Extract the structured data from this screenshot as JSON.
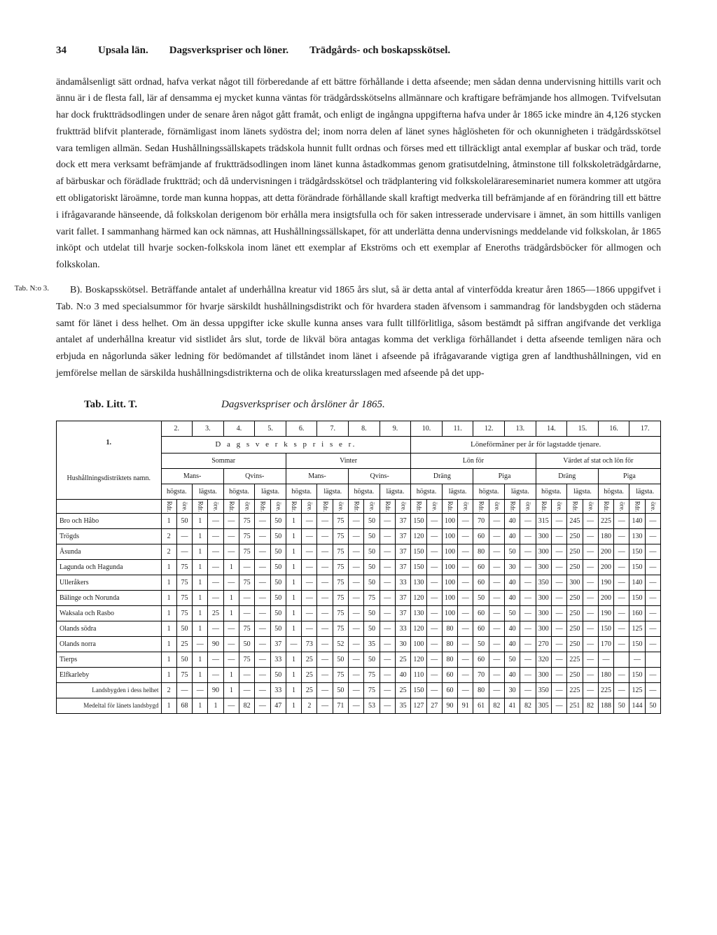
{
  "header": {
    "page": "34",
    "region": "Upsala län.",
    "topic1": "Dagsverkspriser och löner.",
    "topic2": "Trädgårds- och boskapsskötsel."
  },
  "para1": "ändamålsenligt sätt ordnad, hafva verkat något till förberedande af ett bättre förhållande i detta afseende; men sådan denna undervisning hittills varit och ännu är i de flesta fall, lär af densamma ej mycket kunna väntas för trädgårdsskötselns allmännare och kraftigare befrämjande hos allmogen. Tvifvelsutan har dock fruktträdsodlingen under de senare åren något gått framåt, och enligt de ingångna uppgifterna hafva under år 1865 icke mindre än 4,126 stycken fruktträd blifvit planterade, förnämligast inom länets sydöstra del; inom norra delen af länet synes håglösheten för och okunnigheten i trädgårdsskötsel vara temligen allmän. Sedan Hushållningssällskapets trädskola hunnit fullt ordnas och förses med ett tillräckligt antal exemplar af buskar och träd, torde dock ett mera verksamt befrämjande af fruktträdsodlingen inom länet kunna åstadkommas genom gratisutdelning, åtminstone till folkskoleträdgårdarne, af bärbuskar och förädlade fruktträd; och då undervisningen i trädgårdsskötsel och trädplantering vid folkskolelärareseminariet numera kommer att utgöra ett obligatoriskt läroämne, torde man kunna hoppas, att detta förändrade förhållande skall kraftigt medverka till befrämjande af en förändring till ett bättre i ifrågavarande hänseende, då folkskolan derigenom bör erhålla mera insigtsfulla och för saken intresserade undervisare i ämnet, än som hittills vanligen varit fallet. I sammanhang härmed kan ock nämnas, att Hushållningssällskapet, för att underlätta denna undervisnings meddelande vid folkskolan, år 1865 inköpt och utdelat till hvarje socken-folkskola inom länet ett exemplar af Ekströms och ett exemplar af Eneroths trädgårdsböcker för allmogen och folkskolan.",
  "margin_note": "Tab. N:o 3.",
  "para2": "B). Boskapsskötsel. Beträffande antalet af underhållna kreatur vid 1865 års slut, så är detta antal af vinterfödda kreatur åren 1865—1866 uppgifvet i Tab. N:o 3 med specialsummor för hvarje särskildt hushållningsdistrikt och för hvardera staden äfvensom i sammandrag för landsbygden och städerna samt för länet i dess helhet. Om än dessa uppgifter icke skulle kunna anses vara fullt tillförlitliga, såsom bestämdt på siffran angifvande det verkliga antalet af underhållna kreatur vid sistlidet års slut, torde de likväl böra antagas komma det verkliga förhållandet i detta afseende temligen nära och erbjuda en någorlunda säker ledning för bedömandet af tillståndet inom länet i afseende på ifrågavarande vigtiga gren af landthushållningen, vid en jemförelse mellan de särskilda hushållningsdistrikterna och de olika kreatursslagen med afseende på det upp-",
  "table": {
    "label": "Tab. Litt. T.",
    "title": "Dagsverkspriser och årslöner år 1865.",
    "col1_header": "1.",
    "colnums": [
      "2.",
      "3.",
      "4.",
      "5.",
      "6.",
      "7.",
      "8.",
      "9.",
      "10.",
      "11.",
      "12.",
      "13.",
      "14.",
      "15.",
      "16.",
      "17."
    ],
    "sect_left": "D a g s v e r k s p r i s e r.",
    "sect_right": "Löneförmåner per år för lagstadde tjenare.",
    "sommar": "Sommar",
    "vinter": "Vinter",
    "lonfor": "Lön för",
    "vardet": "Värdet af stat och lön för",
    "district_header": "Hushållningsdistriktets namn.",
    "mans": "Mans-",
    "qvins": "Qvins-",
    "drang": "Dräng",
    "piga": "Piga",
    "hogsta": "högsta.",
    "lagsta": "lägsta.",
    "rdr": "Rdr.",
    "ore": "öre.",
    "rows": [
      {
        "name": "Bro och Håbo",
        "v": [
          "1",
          "50",
          "1",
          "—",
          "—",
          "75",
          "—",
          "50",
          "1",
          "—",
          "—",
          "75",
          "—",
          "50",
          "—",
          "37",
          "150",
          "—",
          "100",
          "—",
          "70",
          "—",
          "40",
          "—",
          "315",
          "—",
          "245",
          "—",
          "225",
          "—",
          "140",
          "—"
        ]
      },
      {
        "name": "Trögds",
        "v": [
          "2",
          "—",
          "1",
          "—",
          "—",
          "75",
          "—",
          "50",
          "1",
          "—",
          "—",
          "75",
          "—",
          "50",
          "—",
          "37",
          "120",
          "—",
          "100",
          "—",
          "60",
          "—",
          "40",
          "—",
          "300",
          "—",
          "250",
          "—",
          "180",
          "—",
          "130",
          "—"
        ]
      },
      {
        "name": "Åsunda",
        "v": [
          "2",
          "—",
          "1",
          "—",
          "—",
          "75",
          "—",
          "50",
          "1",
          "—",
          "—",
          "75",
          "—",
          "50",
          "—",
          "37",
          "150",
          "—",
          "100",
          "—",
          "80",
          "—",
          "50",
          "—",
          "300",
          "—",
          "250",
          "—",
          "200",
          "—",
          "150",
          "—"
        ]
      },
      {
        "name": "Lagunda och Hagunda",
        "v": [
          "1",
          "75",
          "1",
          "—",
          "1",
          "—",
          "—",
          "50",
          "1",
          "—",
          "—",
          "75",
          "—",
          "50",
          "—",
          "37",
          "150",
          "—",
          "100",
          "—",
          "60",
          "—",
          "30",
          "—",
          "300",
          "—",
          "250",
          "—",
          "200",
          "—",
          "150",
          "—"
        ]
      },
      {
        "name": "Ulleråkers",
        "v": [
          "1",
          "75",
          "1",
          "—",
          "—",
          "75",
          "—",
          "50",
          "1",
          "—",
          "—",
          "75",
          "—",
          "50",
          "—",
          "33",
          "130",
          "—",
          "100",
          "—",
          "60",
          "—",
          "40",
          "—",
          "350",
          "—",
          "300",
          "—",
          "190",
          "—",
          "140",
          "—"
        ]
      },
      {
        "name": "Bälinge och Norunda",
        "v": [
          "1",
          "75",
          "1",
          "—",
          "1",
          "—",
          "—",
          "50",
          "1",
          "—",
          "—",
          "75",
          "—",
          "75",
          "—",
          "37",
          "120",
          "—",
          "100",
          "—",
          "50",
          "—",
          "40",
          "—",
          "300",
          "—",
          "250",
          "—",
          "200",
          "—",
          "150",
          "—"
        ]
      },
      {
        "name": "Waksala och Rasbo",
        "v": [
          "1",
          "75",
          "1",
          "25",
          "1",
          "—",
          "—",
          "50",
          "1",
          "—",
          "—",
          "75",
          "—",
          "50",
          "—",
          "37",
          "130",
          "—",
          "100",
          "—",
          "60",
          "—",
          "50",
          "—",
          "300",
          "—",
          "250",
          "—",
          "190",
          "—",
          "160",
          "—"
        ]
      },
      {
        "name": "Olands södra",
        "v": [
          "1",
          "50",
          "1",
          "—",
          "—",
          "75",
          "—",
          "50",
          "1",
          "—",
          "—",
          "75",
          "—",
          "50",
          "—",
          "33",
          "120",
          "—",
          "80",
          "—",
          "60",
          "—",
          "40",
          "—",
          "300",
          "—",
          "250",
          "—",
          "150",
          "—",
          "125",
          "—"
        ]
      },
      {
        "name": "Olands norra",
        "v": [
          "1",
          "25",
          "—",
          "90",
          "—",
          "50",
          "—",
          "37",
          "—",
          "73",
          "—",
          "52",
          "—",
          "35",
          "—",
          "30",
          "100",
          "—",
          "80",
          "—",
          "50",
          "—",
          "40",
          "—",
          "270",
          "—",
          "250",
          "—",
          "170",
          "—",
          "150",
          "—"
        ]
      },
      {
        "name": "Tierps",
        "v": [
          "1",
          "50",
          "1",
          "—",
          "—",
          "75",
          "—",
          "33",
          "1",
          "25",
          "—",
          "50",
          "—",
          "50",
          "—",
          "25",
          "120",
          "—",
          "80",
          "—",
          "60",
          "—",
          "50",
          "—",
          "320",
          "—",
          "225",
          "—",
          "—",
          "",
          "—",
          ""
        ]
      },
      {
        "name": "Elfkarleby",
        "v": [
          "1",
          "75",
          "1",
          "—",
          "1",
          "—",
          "—",
          "50",
          "1",
          "25",
          "—",
          "75",
          "—",
          "75",
          "—",
          "40",
          "110",
          "—",
          "60",
          "—",
          "70",
          "—",
          "40",
          "—",
          "300",
          "—",
          "250",
          "—",
          "180",
          "—",
          "150",
          "—"
        ]
      },
      {
        "name": "Landsbygden i dess helhet",
        "v": [
          "2",
          "—",
          "—",
          "90",
          "1",
          "—",
          "—",
          "33",
          "1",
          "25",
          "—",
          "50",
          "—",
          "75",
          "—",
          "25",
          "150",
          "—",
          "60",
          "—",
          "80",
          "—",
          "30",
          "—",
          "350",
          "—",
          "225",
          "—",
          "225",
          "—",
          "125",
          "—"
        ]
      },
      {
        "name": "Medeltal för länets landsbygd",
        "v": [
          "1",
          "68",
          "1",
          "1",
          "—",
          "82",
          "—",
          "47",
          "1",
          "2",
          "—",
          "71",
          "—",
          "53",
          "—",
          "35",
          "127",
          "27",
          "90",
          "91",
          "61",
          "82",
          "41",
          "82",
          "305",
          "—",
          "251",
          "82",
          "188",
          "50",
          "144",
          "50"
        ]
      }
    ]
  }
}
